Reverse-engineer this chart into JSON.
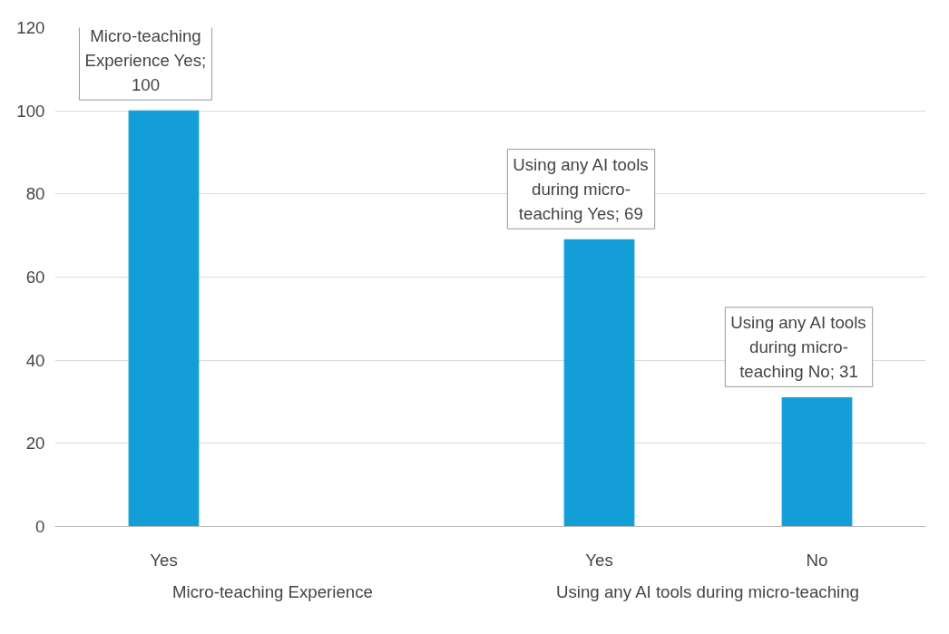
{
  "chart_data": {
    "type": "bar",
    "categories": [
      "Yes",
      null,
      "Yes",
      "No"
    ],
    "values": [
      100,
      null,
      69,
      31
    ],
    "color": "#139ed8",
    "ylim": [
      0,
      120
    ],
    "yticks": [
      0,
      20,
      40,
      60,
      80,
      100,
      120
    ],
    "grid": "y",
    "value_labels": [
      "Micro-teaching Experience Yes; 100",
      null,
      "Using any AI tools during micro-teaching Yes; 69",
      "Using any AI tools during micro-teaching No; 31"
    ],
    "annotations": [
      "Micro-teaching Experience",
      "Using any AI tools during micro-teaching"
    ]
  }
}
